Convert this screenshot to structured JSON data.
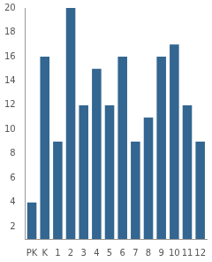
{
  "chart_data": {
    "type": "bar",
    "categories": [
      "PK",
      "K",
      "1",
      "2",
      "3",
      "4",
      "5",
      "6",
      "7",
      "8",
      "9",
      "10",
      "11",
      "12"
    ],
    "values": [
      4,
      16,
      9,
      20,
      12,
      15,
      12,
      16,
      9,
      11,
      16,
      17,
      12,
      9
    ],
    "color": "#336690",
    "ylim": [
      1,
      20
    ],
    "yticks": [
      2,
      4,
      6,
      8,
      10,
      12,
      14,
      16,
      18,
      20
    ],
    "grid": false
  }
}
